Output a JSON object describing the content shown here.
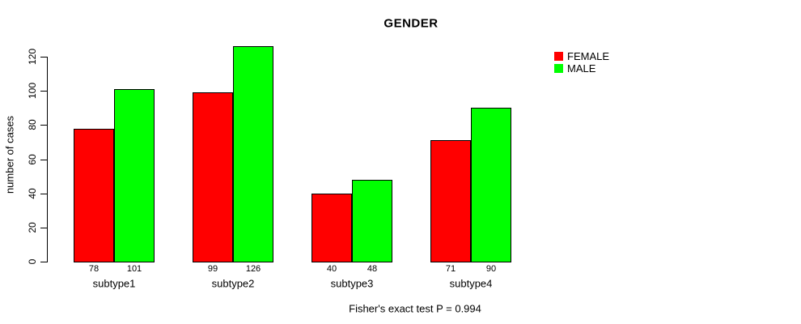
{
  "chart_data": {
    "type": "bar",
    "title": "GENDER",
    "ylabel": "number of cases",
    "xlabel": "",
    "caption": "Fisher's exact test P = 0.994",
    "categories": [
      "subtype1",
      "subtype2",
      "subtype3",
      "subtype4"
    ],
    "series": [
      {
        "name": "FEMALE",
        "color": "#ff0000",
        "values": [
          78,
          99,
          40,
          71
        ]
      },
      {
        "name": "MALE",
        "color": "#00ff00",
        "values": [
          101,
          126,
          48,
          90
        ]
      }
    ],
    "ylim": [
      0,
      120
    ],
    "yticks": [
      0,
      20,
      40,
      60,
      80,
      100,
      120
    ],
    "grid": false,
    "legend_position": "top-right",
    "bar_value_labels_shown": true,
    "axis_color": "#000000",
    "background_color": "#ffffff"
  }
}
